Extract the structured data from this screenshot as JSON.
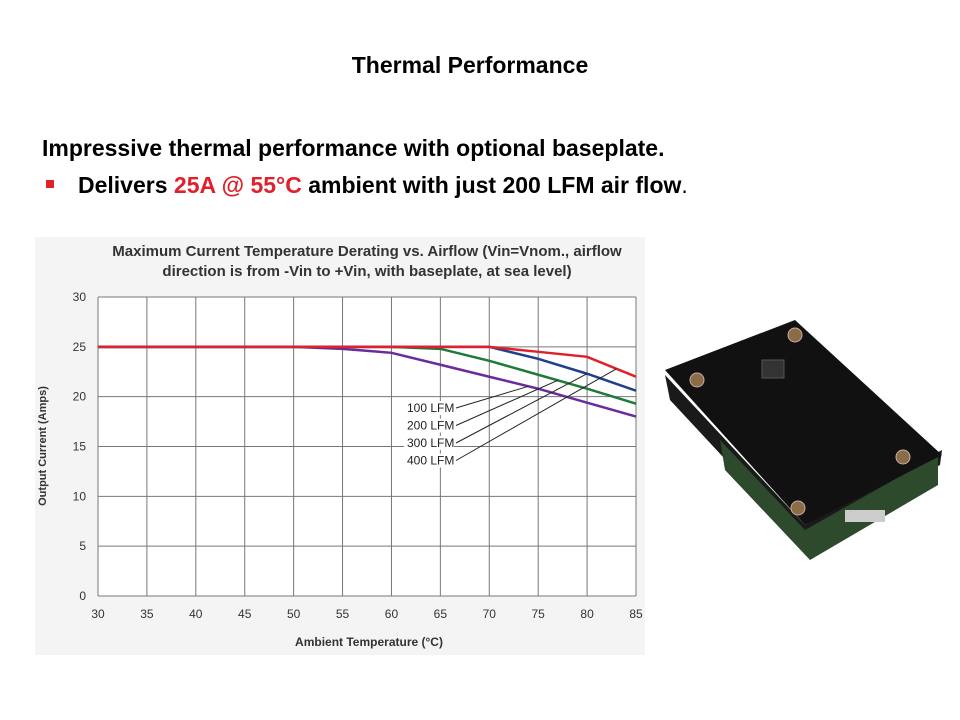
{
  "slide": {
    "heading": "Thermal Performance",
    "subheading": "Impressive thermal performance with optional baseplate.",
    "bullet": [
      "Delivers ",
      "25A @ 55°C",
      " ambient with just 200 LFM air flow",
      "."
    ]
  },
  "chart_data": {
    "type": "line",
    "title": [
      "Maximum Current Temperature Derating vs. Airflow (Vin=Vnom., airflow",
      "direction is from -Vin to +Vin, with baseplate, at sea level)"
    ],
    "x_label": "Ambient Temperature (°C)",
    "y_label": "Output Current (Amps)",
    "x": [
      30,
      35,
      40,
      45,
      50,
      55,
      60,
      65,
      70,
      75,
      80,
      85
    ],
    "series": [
      {
        "name": "100 LFM",
        "color": "#6a2c9c",
        "values": [
          25,
          25,
          25,
          25,
          25,
          24.8,
          24.4,
          23.2,
          22.0,
          20.8,
          19.4,
          18.0
        ]
      },
      {
        "name": "200 LFM",
        "color": "#1f7a3a",
        "values": [
          25,
          25,
          25,
          25,
          25,
          25,
          25,
          24.8,
          23.6,
          22.2,
          20.8,
          19.3
        ]
      },
      {
        "name": "300 LFM",
        "color": "#1f3f8f",
        "values": [
          25,
          25,
          25,
          25,
          25,
          25,
          25,
          25,
          25,
          23.8,
          22.3,
          20.6
        ]
      },
      {
        "name": "400 LFM",
        "color": "#e0202a",
        "values": [
          25,
          25,
          25,
          25,
          25,
          25,
          25,
          25,
          25,
          24.5,
          24.0,
          22.0
        ]
      }
    ],
    "xlim": [
      30,
      85
    ],
    "xticks": [
      30,
      35,
      40,
      45,
      50,
      55,
      60,
      65,
      70,
      75,
      80,
      85
    ],
    "ylim": [
      0,
      30
    ],
    "yticks": [
      0,
      5,
      10,
      15,
      20,
      25,
      30
    ],
    "grid": true
  }
}
